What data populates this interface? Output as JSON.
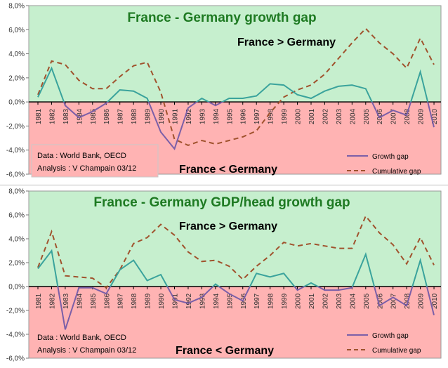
{
  "chart_data": [
    {
      "type": "line",
      "title": "France - Germany growth gap",
      "annotation_top": "France > Germany",
      "annotation_bottom": "France < Germany",
      "source_line1": "Data : World Bank, OECD",
      "source_line2": "Analysis : V Champain 03/12",
      "x": [
        "1981",
        "1982",
        "1983",
        "1984",
        "1985",
        "1986",
        "1987",
        "1988",
        "1989",
        "1990",
        "1991",
        "1992",
        "1993",
        "1994",
        "1995",
        "1996",
        "1997",
        "1998",
        "1999",
        "2000",
        "2001",
        "2002",
        "2003",
        "2004",
        "2005",
        "2006",
        "2007",
        "2008",
        "2009",
        "2010"
      ],
      "ylim": [
        -6,
        8
      ],
      "yticks": [
        "8,0%",
        "6,0%",
        "4,0%",
        "2,0%",
        "0,0%",
        "-2,0%",
        "-4,0%",
        "-6,0%"
      ],
      "series": [
        {
          "name": "Growth gap",
          "style": "solid",
          "color": "#3aa39c",
          "color_neg": "#7b5fa8",
          "values": [
            0.4,
            2.8,
            -0.3,
            -1.3,
            -0.8,
            -0.1,
            1.0,
            0.9,
            0.3,
            -2.5,
            -3.9,
            -0.5,
            0.3,
            -0.3,
            0.3,
            0.3,
            0.5,
            1.5,
            1.4,
            0.6,
            0.3,
            0.9,
            1.3,
            1.4,
            1.1,
            -1.3,
            -0.7,
            -1.1,
            2.5,
            -2.1
          ]
        },
        {
          "name": "Cumulative gap",
          "style": "dashed",
          "color": "#a0522d",
          "values": [
            0.6,
            3.4,
            3.1,
            1.8,
            1.1,
            1.1,
            2.1,
            3.0,
            3.3,
            0.8,
            -3.1,
            -3.6,
            -3.2,
            -3.5,
            -3.2,
            -2.9,
            -2.4,
            -0.9,
            0.4,
            1.0,
            1.4,
            2.3,
            3.6,
            4.9,
            6.1,
            4.9,
            4.0,
            2.8,
            5.3,
            3.1
          ]
        }
      ],
      "colors": {
        "positive_bg": "#c6efce",
        "negative_bg": "#ffb3b3",
        "title": "#1e7a22"
      }
    },
    {
      "type": "line",
      "title": "France - Germany GDP/head growth gap",
      "annotation_top": "France > Germany",
      "annotation_bottom": "France < Germany",
      "source_line1": "Data : World Bank, OECD",
      "source_line2": "Analysis : V Champain 03/12",
      "x": [
        "1981",
        "1982",
        "1983",
        "1984",
        "1985",
        "1986",
        "1987",
        "1988",
        "1989",
        "1990",
        "1991",
        "1992",
        "1993",
        "1994",
        "1995",
        "1996",
        "1997",
        "1998",
        "1999",
        "2000",
        "2001",
        "2002",
        "2003",
        "2004",
        "2005",
        "2006",
        "2007",
        "2008",
        "2009",
        "2010"
      ],
      "ylim": [
        -6,
        8
      ],
      "yticks": [
        "8,0%",
        "6,0%",
        "4,0%",
        "2,0%",
        "0,0%",
        "-2,0%",
        "-4,0%",
        "-6,0%"
      ],
      "series": [
        {
          "name": "Growth gap",
          "style": "solid",
          "color": "#3aa39c",
          "color_neg": "#7b5fa8",
          "values": [
            1.5,
            3.0,
            -3.6,
            -0.1,
            -0.1,
            -0.6,
            1.4,
            2.2,
            0.5,
            1.0,
            -1.1,
            -1.4,
            -0.9,
            0.2,
            -0.6,
            -1.2,
            1.1,
            0.8,
            1.1,
            -0.3,
            0.3,
            -0.3,
            -0.3,
            -0.1,
            2.7,
            -1.6,
            -0.9,
            -1.6,
            2.2,
            -2.4
          ]
        },
        {
          "name": "Cumulative gap",
          "style": "dashed",
          "color": "#a0522d",
          "values": [
            1.6,
            4.6,
            0.9,
            0.8,
            0.7,
            -0.1,
            1.4,
            3.6,
            4.1,
            5.2,
            4.3,
            2.9,
            2.1,
            2.2,
            1.7,
            0.6,
            1.7,
            2.6,
            3.7,
            3.4,
            3.6,
            3.4,
            3.2,
            3.2,
            5.9,
            4.5,
            3.5,
            1.9,
            4.1,
            1.8
          ]
        }
      ],
      "colors": {
        "positive_bg": "#c6efce",
        "negative_bg": "#ffb3b3",
        "title": "#1e7a22"
      }
    }
  ]
}
